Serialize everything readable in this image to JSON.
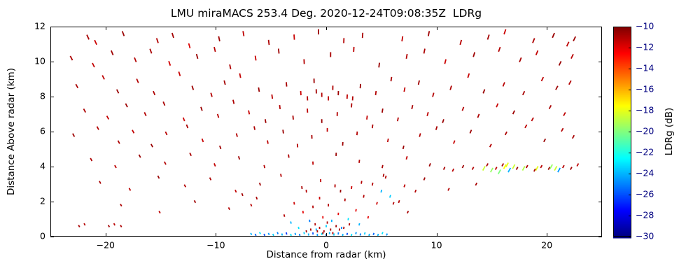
{
  "colors": {
    "background": "#ffffff",
    "frame": "#000000",
    "max_color": "#990000"
  },
  "chart_data": {
    "type": "scatter",
    "title": "LMU miraMACS 253.4 Deg. 2020-12-24T09:08:35Z  LDRg",
    "xlabel": "Distance from radar (km)",
    "ylabel": "Distance Above radar  (km)",
    "xlim": [
      -25,
      25
    ],
    "ylim": [
      0,
      12
    ],
    "xticks": [
      -20,
      -10,
      0,
      10,
      20
    ],
    "yticks": [
      0,
      2,
      4,
      6,
      8,
      10,
      12
    ],
    "grid": false,
    "marker": "vertical-dash",
    "colorbar": {
      "label": "LDRg (dB)",
      "colormap": "jet",
      "clim": [
        -30,
        -10
      ],
      "ticks": [
        -10,
        -12,
        -14,
        -16,
        -18,
        -20,
        -22,
        -24,
        -26,
        -28,
        -30
      ]
    },
    "points": [
      [
        -21.6,
        11.4,
        -10.8
      ],
      [
        -20.9,
        11.1,
        -11.5
      ],
      [
        -18.4,
        11.6,
        -10.5
      ],
      [
        -15.3,
        11.2,
        -11.0
      ],
      [
        -13.9,
        11.5,
        -10.7
      ],
      [
        -12.4,
        10.9,
        -11.8
      ],
      [
        -9.7,
        11.3,
        -10.6
      ],
      [
        -7.5,
        11.6,
        -11.2
      ],
      [
        -5.2,
        11.1,
        -10.9
      ],
      [
        -2.9,
        11.4,
        -11.4
      ],
      [
        -0.7,
        11.7,
        -10.5
      ],
      [
        1.6,
        11.2,
        -11.0
      ],
      [
        3.3,
        11.5,
        -10.8
      ],
      [
        6.9,
        11.3,
        -11.3
      ],
      [
        9.3,
        11.6,
        -10.6
      ],
      [
        12.2,
        11.1,
        -11.1
      ],
      [
        14.7,
        11.4,
        -10.7
      ],
      [
        16.2,
        11.7,
        -11.5
      ],
      [
        18.8,
        11.2,
        -10.9
      ],
      [
        20.6,
        11.5,
        -10.5
      ],
      [
        21.9,
        11.0,
        -11.2
      ],
      [
        22.5,
        11.3,
        -10.6
      ],
      [
        -23.1,
        10.2,
        -10.9
      ],
      [
        -21.1,
        9.8,
        -11.3
      ],
      [
        -19.4,
        10.5,
        -10.6
      ],
      [
        -17.3,
        10.1,
        -11.0
      ],
      [
        -15.9,
        10.6,
        -10.8
      ],
      [
        -14.2,
        9.9,
        -11.6
      ],
      [
        -11.7,
        10.3,
        -10.5
      ],
      [
        -10.1,
        10.7,
        -11.1
      ],
      [
        -8.7,
        9.7,
        -10.9
      ],
      [
        -6.4,
        10.2,
        -11.4
      ],
      [
        -4.3,
        10.6,
        -10.6
      ],
      [
        -2.0,
        10.0,
        -11.0
      ],
      [
        0.4,
        10.4,
        -10.8
      ],
      [
        2.5,
        10.7,
        -11.2
      ],
      [
        4.8,
        9.8,
        -10.5
      ],
      [
        7.3,
        10.3,
        -11.0
      ],
      [
        8.9,
        10.6,
        -10.9
      ],
      [
        10.8,
        10.0,
        -11.5
      ],
      [
        13.4,
        10.4,
        -10.6
      ],
      [
        15.7,
        10.7,
        -11.0
      ],
      [
        17.6,
        10.1,
        -10.8
      ],
      [
        19.1,
        10.5,
        -11.3
      ],
      [
        21.2,
        9.9,
        -10.5
      ],
      [
        22.3,
        10.3,
        -11.1
      ],
      [
        -22.6,
        8.6,
        -10.8
      ],
      [
        -20.2,
        9.1,
        -11.2
      ],
      [
        -18.9,
        8.3,
        -10.5
      ],
      [
        -17.1,
        8.9,
        -11.0
      ],
      [
        -15.6,
        8.2,
        -10.9
      ],
      [
        -13.3,
        9.3,
        -11.4
      ],
      [
        -12.1,
        8.5,
        -10.6
      ],
      [
        -10.4,
        8.1,
        -11.0
      ],
      [
        -9.2,
        8.8,
        -10.7
      ],
      [
        -7.8,
        9.2,
        -11.3
      ],
      [
        -6.1,
        8.4,
        -10.5
      ],
      [
        -4.9,
        8.0,
        -11.1
      ],
      [
        -3.6,
        8.7,
        -10.8
      ],
      [
        -2.3,
        8.2,
        -11.5
      ],
      [
        -1.1,
        8.9,
        -10.6
      ],
      [
        -0.4,
        8.1,
        -11.0
      ],
      [
        0.6,
        8.5,
        -10.9
      ],
      [
        1.9,
        8.0,
        -11.2
      ],
      [
        3.1,
        8.6,
        -10.5
      ],
      [
        4.5,
        8.2,
        -11.0
      ],
      [
        5.9,
        9.0,
        -10.8
      ],
      [
        7.1,
        8.4,
        -11.3
      ],
      [
        8.4,
        8.8,
        -10.6
      ],
      [
        9.7,
        8.1,
        -11.0
      ],
      [
        11.3,
        8.5,
        -10.9
      ],
      [
        12.9,
        9.2,
        -11.4
      ],
      [
        14.3,
        8.3,
        -10.5
      ],
      [
        16.1,
        8.7,
        -11.1
      ],
      [
        17.9,
        8.2,
        -10.8
      ],
      [
        19.6,
        9.0,
        -11.2
      ],
      [
        20.9,
        8.5,
        -10.6
      ],
      [
        22.1,
        8.8,
        -11.0
      ],
      [
        -1.7,
        7.9,
        -11.0
      ],
      [
        -0.9,
        8.3,
        -10.7
      ],
      [
        0.2,
        7.9,
        -11.2
      ],
      [
        1.1,
        8.2,
        -10.6
      ],
      [
        2.4,
        7.9,
        -11.0
      ],
      [
        -21.9,
        7.2,
        -10.9
      ],
      [
        -19.8,
        6.8,
        -11.3
      ],
      [
        -18.1,
        7.5,
        -10.6
      ],
      [
        -16.4,
        7.0,
        -11.0
      ],
      [
        -14.7,
        7.6,
        -10.8
      ],
      [
        -12.9,
        6.7,
        -11.5
      ],
      [
        -11.3,
        7.3,
        -10.5
      ],
      [
        -9.8,
        6.9,
        -11.1
      ],
      [
        -8.4,
        7.7,
        -10.9
      ],
      [
        -7.0,
        7.1,
        -11.4
      ],
      [
        -5.5,
        6.6,
        -10.6
      ],
      [
        -4.2,
        7.4,
        -11.0
      ],
      [
        -3.0,
        6.8,
        -10.8
      ],
      [
        -1.7,
        7.2,
        -11.2
      ],
      [
        -0.4,
        6.6,
        -10.5
      ],
      [
        1.0,
        7.0,
        -11.0
      ],
      [
        2.3,
        7.5,
        -10.9
      ],
      [
        3.7,
        6.8,
        -11.3
      ],
      [
        5.1,
        7.2,
        -10.6
      ],
      [
        6.5,
        6.7,
        -11.0
      ],
      [
        7.8,
        7.4,
        -10.8
      ],
      [
        9.2,
        7.0,
        -11.2
      ],
      [
        10.6,
        6.6,
        -10.5
      ],
      [
        12.4,
        7.3,
        -11.0
      ],
      [
        13.8,
        6.9,
        -10.9
      ],
      [
        15.5,
        7.5,
        -11.4
      ],
      [
        17.0,
        7.1,
        -10.6
      ],
      [
        18.7,
        6.7,
        -11.1
      ],
      [
        20.3,
        7.4,
        -10.8
      ],
      [
        21.6,
        7.0,
        -11.2
      ],
      [
        -22.9,
        5.8,
        -10.6
      ],
      [
        -20.7,
        6.2,
        -11.0
      ],
      [
        -18.8,
        5.4,
        -10.9
      ],
      [
        -17.5,
        6.0,
        -11.3
      ],
      [
        -15.8,
        5.2,
        -10.5
      ],
      [
        -14.5,
        5.9,
        -11.1
      ],
      [
        -12.6,
        6.3,
        -10.8
      ],
      [
        -11.2,
        5.5,
        -11.4
      ],
      [
        -9.6,
        5.1,
        -10.6
      ],
      [
        -8.1,
        5.8,
        -11.0
      ],
      [
        -6.5,
        6.2,
        -10.9
      ],
      [
        -5.3,
        5.4,
        -11.2
      ],
      [
        -3.9,
        6.0,
        -10.5
      ],
      [
        -2.6,
        5.2,
        -11.0
      ],
      [
        -1.3,
        5.7,
        -10.8
      ],
      [
        0.1,
        6.1,
        -11.3
      ],
      [
        1.5,
        5.3,
        -10.6
      ],
      [
        2.8,
        5.9,
        -11.0
      ],
      [
        4.2,
        6.3,
        -10.9
      ],
      [
        5.6,
        5.5,
        -11.2
      ],
      [
        7.0,
        5.1,
        -10.5
      ],
      [
        8.5,
        5.8,
        -11.0
      ],
      [
        10.0,
        6.2,
        -10.8
      ],
      [
        11.6,
        5.4,
        -11.4
      ],
      [
        13.1,
        6.0,
        -10.6
      ],
      [
        14.9,
        5.2,
        -11.0
      ],
      [
        16.3,
        5.9,
        -10.9
      ],
      [
        18.1,
        6.3,
        -11.2
      ],
      [
        19.8,
        5.5,
        -10.5
      ],
      [
        21.4,
        6.1,
        -11.0
      ],
      [
        22.4,
        5.7,
        -10.8
      ],
      [
        -21.3,
        4.4,
        -10.9
      ],
      [
        -19.1,
        4.0,
        -11.2
      ],
      [
        -16.9,
        4.6,
        -10.5
      ],
      [
        -14.6,
        4.2,
        -11.0
      ],
      [
        -12.3,
        4.7,
        -10.8
      ],
      [
        -10.1,
        4.1,
        -11.3
      ],
      [
        -7.9,
        4.5,
        -10.6
      ],
      [
        -5.6,
        4.0,
        -11.0
      ],
      [
        -3.4,
        4.6,
        -10.9
      ],
      [
        -1.2,
        4.2,
        -11.2
      ],
      [
        0.9,
        4.7,
        -10.5
      ],
      [
        3.0,
        4.3,
        -11.0
      ],
      [
        5.1,
        4.0,
        -10.8
      ],
      [
        7.3,
        4.5,
        -11.3
      ],
      [
        9.4,
        4.1,
        -10.6
      ],
      [
        10.7,
        3.9,
        -10.8
      ],
      [
        11.5,
        3.8,
        -11.1
      ],
      [
        12.4,
        4.0,
        -10.6
      ],
      [
        13.3,
        3.9,
        -11.0
      ],
      [
        14.6,
        4.1,
        -10.8
      ],
      [
        15.4,
        3.9,
        -11.2
      ],
      [
        16.0,
        4.1,
        -10.7
      ],
      [
        17.3,
        3.9,
        -10.5
      ],
      [
        18.2,
        4.0,
        -11.0
      ],
      [
        18.9,
        3.8,
        -10.8
      ],
      [
        19.5,
        4.0,
        -11.1
      ],
      [
        20.2,
        3.9,
        -10.6
      ],
      [
        21.5,
        4.0,
        -11.0
      ],
      [
        22.2,
        3.9,
        -10.7
      ],
      [
        22.8,
        4.1,
        -11.2
      ],
      [
        -20.5,
        3.1,
        -10.8
      ],
      [
        -17.8,
        2.7,
        -11.1
      ],
      [
        -15.2,
        3.4,
        -10.5
      ],
      [
        -12.8,
        2.9,
        -11.0
      ],
      [
        -10.5,
        3.3,
        -10.9
      ],
      [
        -8.2,
        2.6,
        -11.3
      ],
      [
        -6.0,
        3.0,
        -10.6
      ],
      [
        -4.1,
        3.5,
        -11.0
      ],
      [
        -2.2,
        2.8,
        -10.8
      ],
      [
        -0.5,
        3.2,
        -11.2
      ],
      [
        1.3,
        2.6,
        -10.5
      ],
      [
        3.2,
        3.1,
        -11.0
      ],
      [
        5.2,
        3.5,
        -10.9
      ],
      [
        7.1,
        2.9,
        -11.2
      ],
      [
        8.9,
        3.3,
        -10.6
      ],
      [
        11.1,
        2.7,
        -11.0
      ],
      [
        13.6,
        3.0,
        -10.8
      ],
      [
        -18.6,
        1.8,
        -10.9
      ],
      [
        -15.1,
        1.4,
        -11.2
      ],
      [
        -11.9,
        2.0,
        -10.6
      ],
      [
        -8.8,
        1.6,
        -11.0
      ],
      [
        -6.3,
        2.2,
        -10.8
      ],
      [
        6.6,
        2.0,
        -11.0
      ],
      [
        7.4,
        1.4,
        -10.8
      ],
      [
        -6.8,
        1.8,
        -11.1
      ],
      [
        -7.6,
        2.4,
        -10.7
      ],
      [
        8.1,
        2.6,
        -11.0
      ],
      [
        6.1,
        1.9,
        -11.0
      ],
      [
        -22.4,
        0.6,
        -10.8
      ],
      [
        -21.9,
        0.7,
        -11.0
      ],
      [
        -19.7,
        0.6,
        -10.7
      ],
      [
        -19.2,
        0.7,
        -11.1
      ],
      [
        -18.6,
        0.6,
        -10.9
      ],
      [
        -3.8,
        1.2,
        -11.0
      ],
      [
        -3.2,
        0.8,
        -24.0
      ],
      [
        -2.9,
        1.9,
        -11.5
      ],
      [
        -2.5,
        0.5,
        -23.0
      ],
      [
        -2.1,
        1.4,
        -12.0
      ],
      [
        -1.8,
        2.6,
        -11.0
      ],
      [
        -1.5,
        0.9,
        -25.0
      ],
      [
        -1.2,
        1.7,
        -11.0
      ],
      [
        -0.9,
        0.4,
        -24.0
      ],
      [
        -0.6,
        2.2,
        -11.5
      ],
      [
        -0.3,
        1.1,
        -12.0
      ],
      [
        0.0,
        0.6,
        -23.5
      ],
      [
        0.2,
        1.8,
        -11.0
      ],
      [
        0.5,
        0.9,
        -24.0
      ],
      [
        0.8,
        2.9,
        -11.0
      ],
      [
        1.1,
        1.3,
        -12.0
      ],
      [
        1.4,
        0.5,
        -25.0
      ],
      [
        1.7,
        2.1,
        -11.0
      ],
      [
        2.0,
        1.0,
        -23.0
      ],
      [
        2.3,
        2.8,
        -11.5
      ],
      [
        2.7,
        1.5,
        -12.0
      ],
      [
        3.0,
        0.7,
        -24.0
      ],
      [
        3.4,
        2.3,
        -11.0
      ],
      [
        3.8,
        1.1,
        -12.0
      ],
      [
        4.2,
        3.0,
        -11.0
      ],
      [
        4.6,
        1.9,
        -11.5
      ],
      [
        5.0,
        2.6,
        -24.0
      ],
      [
        5.4,
        3.4,
        -11.0
      ],
      [
        5.8,
        2.3,
        -23.5
      ],
      [
        -6.8,
        0.15,
        -24.0
      ],
      [
        -6.4,
        0.1,
        -25.5
      ],
      [
        -6.0,
        0.2,
        -23.0
      ],
      [
        -5.6,
        0.1,
        -26.0
      ],
      [
        -5.2,
        0.15,
        -24.5
      ],
      [
        -4.8,
        0.1,
        -23.5
      ],
      [
        -4.4,
        0.2,
        -25.0
      ],
      [
        -4.0,
        0.12,
        -24.0
      ],
      [
        -3.6,
        0.18,
        -26.5
      ],
      [
        -3.2,
        0.1,
        -23.0
      ],
      [
        -2.8,
        0.15,
        -24.5
      ],
      [
        -2.4,
        0.1,
        -25.0
      ],
      [
        -2.0,
        0.2,
        -23.5
      ],
      [
        -1.6,
        0.12,
        -24.0
      ],
      [
        -1.2,
        0.18,
        -26.0
      ],
      [
        -0.8,
        0.1,
        -24.5
      ],
      [
        -0.4,
        0.15,
        -23.0
      ],
      [
        0.0,
        0.1,
        -25.5
      ],
      [
        0.3,
        0.2,
        -24.0
      ],
      [
        0.7,
        0.12,
        -23.5
      ],
      [
        1.1,
        0.18,
        -25.0
      ],
      [
        1.5,
        0.1,
        -24.0
      ],
      [
        1.9,
        0.15,
        -26.0
      ],
      [
        2.3,
        0.1,
        -23.0
      ],
      [
        2.7,
        0.2,
        -24.5
      ],
      [
        3.1,
        0.12,
        -25.0
      ],
      [
        3.5,
        0.18,
        -23.5
      ],
      [
        3.9,
        0.1,
        -24.0
      ],
      [
        4.3,
        0.15,
        -25.5
      ],
      [
        4.7,
        0.1,
        -24.0
      ],
      [
        5.1,
        0.2,
        -23.0
      ],
      [
        5.5,
        0.12,
        -24.5
      ],
      [
        -0.2,
        0.3,
        -11.0
      ],
      [
        0.4,
        0.4,
        -10.8
      ],
      [
        -0.6,
        0.5,
        -11.2
      ],
      [
        0.9,
        0.6,
        -10.6
      ],
      [
        -1.0,
        0.7,
        -11.0
      ],
      [
        0.1,
        0.8,
        -10.9
      ],
      [
        -0.8,
        0.3,
        -11.0
      ],
      [
        0.6,
        0.2,
        -11.3
      ],
      [
        -0.3,
        0.2,
        -10.7
      ],
      [
        1.2,
        0.4,
        -11.0
      ],
      [
        -1.4,
        0.4,
        -10.8
      ],
      [
        1.6,
        0.5,
        -11.1
      ],
      [
        -1.8,
        0.3,
        -10.6
      ],
      [
        2.1,
        0.7,
        -11.0
      ],
      [
        14.3,
        3.9,
        -18.5
      ],
      [
        15.0,
        3.8,
        -19.5
      ],
      [
        15.7,
        3.7,
        -20.0
      ],
      [
        16.2,
        4.0,
        -17.5
      ],
      [
        16.4,
        4.1,
        -18.0
      ],
      [
        16.6,
        3.8,
        -24.0
      ],
      [
        17.0,
        4.0,
        -18.5
      ],
      [
        17.9,
        3.9,
        -19.0
      ],
      [
        19.1,
        3.9,
        -18.0
      ],
      [
        20.4,
        4.0,
        -19.5
      ],
      [
        20.8,
        3.9,
        -18.5
      ],
      [
        21.1,
        3.8,
        -24.5
      ]
    ]
  }
}
